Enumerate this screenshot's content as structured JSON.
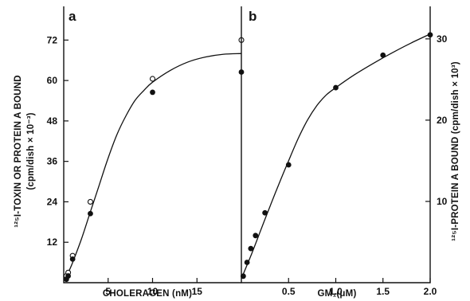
{
  "chart_data": [
    {
      "type": "scatter",
      "panel_label": "a",
      "xlabel": "CHOLERAGEN (nM)",
      "ylabel_line1": "¹²⁵I-TOXIN OR PROTEIN A BOUND",
      "ylabel_line2": "(cpm/dish × 10⁻³)",
      "xlim": [
        0,
        20
      ],
      "ylim": [
        0,
        82
      ],
      "x_ticks": [
        5,
        10,
        15
      ],
      "x_tick_labels": [
        "5",
        "10",
        "15"
      ],
      "y_ticks": [
        12,
        24,
        36,
        48,
        60,
        72
      ],
      "y_tick_labels": [
        "12",
        "24",
        "36",
        "48",
        "60",
        "72"
      ],
      "series": [
        {
          "marker": "open-circle",
          "x": [
            0.3,
            0.5,
            1.0,
            3.0,
            10.0,
            20.0
          ],
          "y": [
            2.0,
            3.0,
            8.0,
            24.0,
            60.5,
            72.0
          ]
        },
        {
          "marker": "filled-circle",
          "x": [
            0.3,
            0.5,
            1.0,
            3.0,
            10.0,
            20.0
          ],
          "y": [
            1.0,
            2.0,
            7.0,
            20.5,
            56.5,
            62.5
          ]
        }
      ],
      "fit_curve": {
        "x": [
          0,
          0.5,
          1,
          2,
          3,
          4,
          5,
          6,
          7,
          8,
          9,
          10,
          12,
          14,
          16,
          18,
          20
        ],
        "y": [
          1.0,
          3.0,
          6.0,
          13.0,
          21.0,
          29.0,
          37.0,
          44.0,
          49.5,
          54.0,
          57.0,
          59.5,
          63.0,
          65.5,
          67.0,
          67.8,
          68.0
        ]
      },
      "colors": {
        "ink": "#111111",
        "background": "#ffffff"
      }
    },
    {
      "type": "scatter",
      "panel_label": "b",
      "xlabel": "GM₁(μM)",
      "ylabel": "¹²⁵I-PROTEIN A BOUND (cpm/dish × 10³)",
      "xlim": [
        0,
        2.0
      ],
      "ylim": [
        0,
        34
      ],
      "x_ticks": [
        0.5,
        1.0,
        1.5,
        2.0
      ],
      "x_tick_labels": [
        "0.5",
        "1.0",
        "1.5",
        "2.0"
      ],
      "y_ticks": [
        10,
        20,
        30
      ],
      "y_tick_labels": [
        "10",
        "20",
        "30"
      ],
      "series": [
        {
          "marker": "filled-circle",
          "x": [
            0.02,
            0.06,
            0.1,
            0.15,
            0.25,
            0.5,
            1.0,
            1.5,
            2.0
          ],
          "y": [
            0.8,
            2.5,
            4.2,
            5.8,
            8.6,
            14.5,
            24.0,
            28.0,
            30.5
          ]
        }
      ],
      "fit_curve": {
        "x": [
          0,
          0.1,
          0.2,
          0.3,
          0.4,
          0.5,
          0.6,
          0.7,
          0.8,
          0.9,
          1.0,
          1.2,
          1.4,
          1.6,
          1.8,
          2.0
        ],
        "y": [
          0.5,
          3.3,
          6.3,
          9.3,
          12.2,
          15.0,
          17.7,
          20.0,
          21.8,
          23.1,
          24.0,
          25.6,
          27.0,
          28.3,
          29.5,
          30.6
        ]
      },
      "colors": {
        "ink": "#111111",
        "background": "#ffffff"
      }
    }
  ]
}
